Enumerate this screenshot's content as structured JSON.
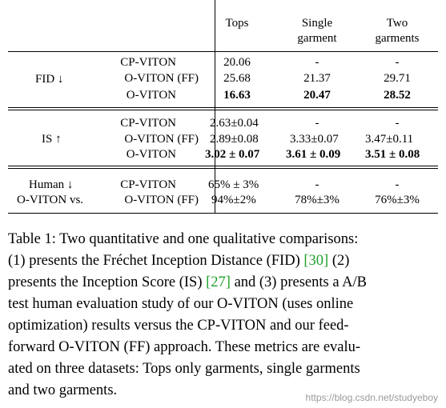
{
  "table": {
    "headers": {
      "tops": "Tops",
      "single": [
        "Single",
        "garment"
      ],
      "two": [
        "Two",
        "garments"
      ]
    },
    "sections": [
      {
        "label": "FID ↓",
        "rows": [
          {
            "method": "CP-VITON",
            "tops": "20.06",
            "single": "-",
            "two": "-"
          },
          {
            "method": "O-VITON (FF)",
            "tops": "25.68",
            "single": "21.37",
            "two": "29.71"
          },
          {
            "method": "O-VITON",
            "tops": "16.63",
            "single": "20.47",
            "two": "28.52"
          }
        ]
      },
      {
        "label": "IS ↑",
        "rows": [
          {
            "method": "CP-VITON",
            "tops": "2.63±0.04",
            "single": "-",
            "two": "-"
          },
          {
            "method": "O-VITON (FF)",
            "tops": "2.89±0.08",
            "single": "3.33±0.07",
            "two": "3.47±0.11"
          },
          {
            "method": "O-VITON",
            "tops": "3.02 ± 0.07",
            "single": "3.61 ± 0.09",
            "two": "3.51 ± 0.08"
          }
        ]
      },
      {
        "label": [
          "Human ↓",
          "O-VITON vs."
        ],
        "rows": [
          {
            "method": "CP-VITON",
            "tops": "65% ± 3%",
            "single": "-",
            "two": "-"
          },
          {
            "method": "O-VITON (FF)",
            "tops": "94%±2%",
            "single": "78%±3%",
            "two": "76%±3%"
          }
        ]
      }
    ]
  },
  "caption": {
    "lines": [
      [
        "Table 1: Two quantitative and one qualitative comparisons:"
      ],
      [
        "(1) presents the Fréchet Inception Distance (FID) ",
        "[30]",
        " (2)"
      ],
      [
        "presents the Inception Score (IS) ",
        "[27]",
        " and (3) presents a A/B"
      ],
      [
        "test human evaluation study of our O-VITON (uses online"
      ],
      [
        "optimization) results versus the CP-VITON and our feed-"
      ],
      [
        "forward O-VITON (FF) approach. These metrics are evalu-"
      ],
      [
        "ated on three datasets: Tops only garments, single garments"
      ],
      [
        "and two garments."
      ]
    ]
  },
  "watermark": "https://blog.csdn.net/studyeboy"
}
